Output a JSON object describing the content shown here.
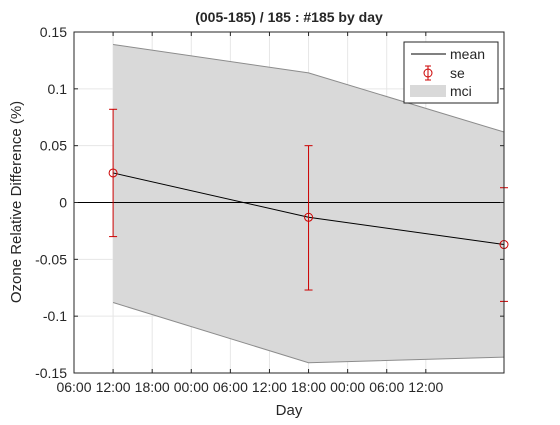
{
  "chart_data": {
    "type": "line",
    "title": "(005-185) / 185 : #185 by day",
    "xlabel": "Day",
    "ylabel": "Ozone Relative Difference (%)",
    "ylim": [
      -0.15,
      0.15
    ],
    "xlim_hours": [
      0,
      66
    ],
    "x_tick_labels": [
      "06:00",
      "12:00",
      "18:00",
      "00:00",
      "06:00",
      "12:00",
      "18:00",
      "00:00",
      "06:00",
      "12:00"
    ],
    "y_tick_labels": [
      "0.15",
      "0.1",
      "0.05",
      "0",
      "-0.05",
      "-0.1",
      "-0.15"
    ],
    "y_ticks": [
      0.15,
      0.1,
      0.05,
      0,
      -0.05,
      -0.1,
      -0.15
    ],
    "grid": true,
    "zero_line": true,
    "legend_position": "top-right",
    "legend": [
      "mean",
      "se",
      "mci"
    ],
    "x_hours": [
      6,
      36,
      66
    ],
    "mean": [
      0.026,
      -0.013,
      -0.037
    ],
    "se_upper": [
      0.082,
      0.05,
      0.013
    ],
    "se_lower": [
      -0.03,
      -0.077,
      -0.087
    ],
    "mci_upper": [
      0.139,
      0.114,
      0.062
    ],
    "mci_lower": [
      -0.088,
      -0.141,
      -0.136
    ],
    "colors": {
      "mean": "#000000",
      "se": "#cc0000",
      "mci_fill": "#d9d9d9",
      "mci_edge": "#8c8c8c",
      "grid": "#e6e6e6",
      "axis": "#262626"
    }
  }
}
